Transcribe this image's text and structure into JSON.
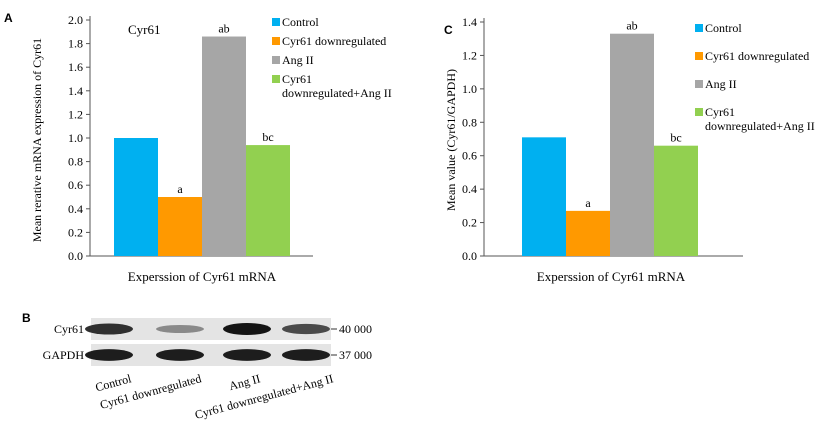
{
  "colors": {
    "control": "#00b0f0",
    "downregulated": "#ff9900",
    "ang2": "#a6a6a6",
    "combo": "#92d050"
  },
  "chart_data": [
    {
      "panel": "A",
      "type": "bar",
      "title": "Cyr61",
      "xlabel": "Experssion of Cyr61 mRNA",
      "ylabel": "Mean rerative mRNA expression of Cyr61",
      "ylim": [
        0,
        2.0
      ],
      "yticks": [
        "0.0",
        "0.2",
        "0.4",
        "0.6",
        "0.8",
        "1.0",
        "1.2",
        "1.4",
        "1.6",
        "1.8",
        "2.0"
      ],
      "grid": false,
      "legend_position": "right",
      "series": [
        {
          "name": "Control",
          "value": 1.0,
          "label": "",
          "color_key": "control"
        },
        {
          "name": "Cyr61 downregulated",
          "value": 0.5,
          "label": "a",
          "color_key": "downregulated"
        },
        {
          "name": "Ang II",
          "value": 1.86,
          "label": "ab",
          "color_key": "ang2"
        },
        {
          "name": "Cyr61 downregulated+Ang II",
          "value": 0.94,
          "label": "bc",
          "color_key": "combo"
        }
      ],
      "legend": [
        {
          "lines": [
            "Control"
          ],
          "color_key": "control"
        },
        {
          "lines": [
            "Cyr61 downregulated"
          ],
          "color_key": "downregulated"
        },
        {
          "lines": [
            "Ang II"
          ],
          "color_key": "ang2"
        },
        {
          "lines": [
            "Cyr61",
            "downregulated+Ang II"
          ],
          "color_key": "combo"
        }
      ]
    },
    {
      "panel": "C",
      "type": "bar",
      "title": "",
      "xlabel": "Experssion of Cyr61 mRNA",
      "ylabel": "Mean value (Cyr61/GAPDH)",
      "ylim": [
        0,
        1.4
      ],
      "yticks": [
        "0.0",
        "0.2",
        "0.4",
        "0.6",
        "0.8",
        "1.0",
        "1.2",
        "1.4"
      ],
      "grid": false,
      "legend_position": "right",
      "series": [
        {
          "name": "Control",
          "value": 0.71,
          "label": "",
          "color_key": "control"
        },
        {
          "name": "Cyr61 downregulated",
          "value": 0.27,
          "label": "a",
          "color_key": "downregulated"
        },
        {
          "name": "Ang II",
          "value": 1.33,
          "label": "ab",
          "color_key": "ang2"
        },
        {
          "name": "Cyr61 downregulated+Ang II",
          "value": 0.66,
          "label": "bc",
          "color_key": "combo"
        }
      ],
      "legend": [
        {
          "lines": [
            "Control"
          ],
          "color_key": "control"
        },
        {
          "lines": [
            "Cyr61 downregulated"
          ],
          "color_key": "downregulated"
        },
        {
          "lines": [
            "Ang II"
          ],
          "color_key": "ang2"
        },
        {
          "lines": [
            "Cyr61",
            "downregulated+Ang II"
          ],
          "color_key": "combo"
        }
      ]
    }
  ],
  "blot": {
    "panel": "B",
    "rows": [
      {
        "label": "Cyr61",
        "size": "40 000",
        "intensity": [
          0.85,
          0.35,
          1.0,
          0.7
        ]
      },
      {
        "label": "GAPDH",
        "size": "37 000",
        "intensity": [
          0.95,
          0.95,
          0.95,
          0.95
        ]
      }
    ],
    "lanes": [
      "Control",
      "Cyr61 downregulated",
      "Ang II",
      "Cyr61 downregulated+Ang II"
    ]
  }
}
